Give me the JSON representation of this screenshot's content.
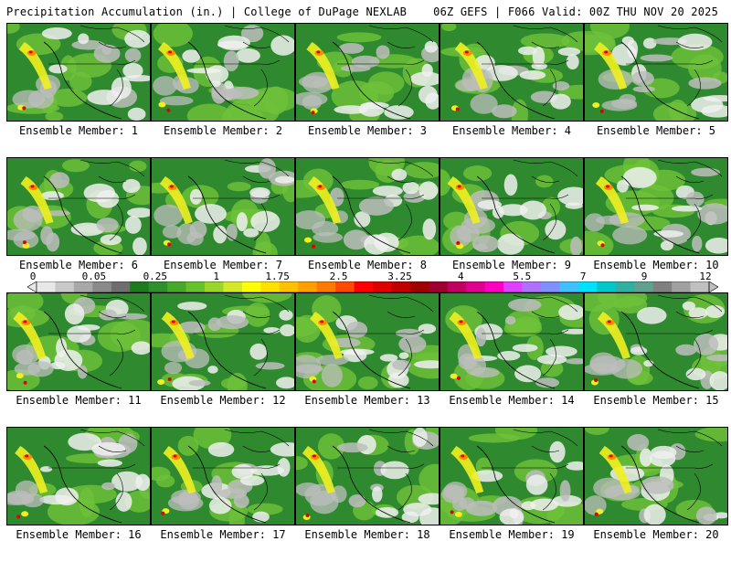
{
  "header": {
    "left": "Precipitation Accumulation (in.) | College of DuPage NEXLAB",
    "right": "06Z GEFS | F066 Valid: 00Z THU NOV 20 2025"
  },
  "caption_prefix": "Ensemble Member:",
  "members": [
    1,
    2,
    3,
    4,
    5,
    6,
    7,
    8,
    9,
    10,
    11,
    12,
    13,
    14,
    15,
    16,
    17,
    18,
    19,
    20
  ],
  "colorbar": {
    "tick_labels": [
      "0",
      "0.05",
      "0.25",
      "1",
      "1.75",
      "2.5",
      "3.25",
      "4",
      "5.5",
      "7",
      "9",
      "12"
    ],
    "colors": [
      "#e8e8e8",
      "#c8c8c8",
      "#a8a8a8",
      "#8a8a8a",
      "#6e6e6e",
      "#1e7a1e",
      "#2f8f2f",
      "#47a82a",
      "#66c22a",
      "#9ad62a",
      "#d4e82a",
      "#ffff00",
      "#ffe000",
      "#ffc000",
      "#ffa000",
      "#ff7800",
      "#ff4800",
      "#ff0000",
      "#e00000",
      "#c00000",
      "#a00000",
      "#a00030",
      "#c00060",
      "#e00090",
      "#ff00c0",
      "#e040ff",
      "#b070ff",
      "#8090ff",
      "#40c0ff",
      "#00e0ff",
      "#00c8c8",
      "#30b0a0",
      "#60a090",
      "#808080",
      "#a0a0a0",
      "#c0c0c0"
    ]
  },
  "legend_units": "in.",
  "colors": {
    "background": "#ffffff",
    "land_green": "#2f8a2f",
    "light_green": "#6fc23a",
    "yellow": "#f0f020",
    "orange": "#ff8c00",
    "red": "#e00000",
    "white_cloud": "#f0f0f0",
    "gray": "#bdbdbd"
  }
}
